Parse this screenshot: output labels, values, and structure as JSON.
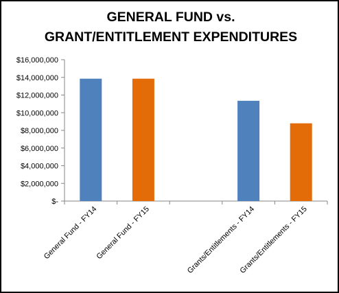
{
  "chart_data": {
    "type": "bar",
    "title": [
      "GENERAL FUND vs.",
      "GRANT/ENTITLEMENT EXPENDITURES"
    ],
    "categories": [
      "General Fund - FY14",
      "General Fund - FY15",
      "",
      "Grants/Entitlements - FY14",
      "Grants/Entitlements - FY15"
    ],
    "values": [
      13850000,
      13850000,
      0,
      11350000,
      8800000
    ],
    "bar_colors": [
      "#4f81bd",
      "#e36c09",
      "#ffffff",
      "#4f81bd",
      "#e36c09"
    ],
    "ylim": [
      0,
      16000000
    ],
    "yticks": [
      0,
      2000000,
      4000000,
      6000000,
      8000000,
      10000000,
      12000000,
      14000000,
      16000000
    ],
    "ytick_labels": [
      "$-",
      "$2,000,000",
      "$4,000,000",
      "$6,000,000",
      "$8,000,000",
      "$10,000,000",
      "$12,000,000",
      "$14,000,000",
      "$16,000,000"
    ],
    "xlabel": "",
    "ylabel": "",
    "grid": false,
    "legend": "none"
  }
}
